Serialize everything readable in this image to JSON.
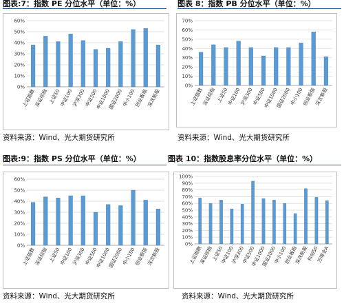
{
  "captions": [
    {
      "title": "图表:7：指数 PE 分位水平（单位：%）",
      "source": "资料来源：Wind、光大期货研究所"
    },
    {
      "title": "图表 8：指数 PB 分位水平（单位：%）",
      "source": "资料来源：Wind、光大期货研究所"
    },
    {
      "title": "图表:9：指数 PS 分位水平（单位：%）",
      "source": "资料来源：Wind、光大期货研究所"
    },
    {
      "title": "图表 10：指数股息率分位水平（单位：%）",
      "source": "资料来源：Wind、光大期货研究所"
    }
  ],
  "colors": {
    "bar": "#5b9bd5",
    "bar_edge": "#41719c",
    "grid": "#d9d9d9",
    "rule": "#2f5597"
  },
  "chart_data": [
    {
      "type": "bar",
      "title": "图表:7：指数 PE 分位水平（单位：%）",
      "ylim": [
        0,
        60
      ],
      "ytick_step": 10,
      "ytick_format": "percent",
      "grid": true,
      "categories": [
        "上证指数",
        "深证综指",
        "上证50",
        "中证100",
        "沪深300",
        "中证500",
        "中证1000",
        "国证2000",
        "中小100",
        "创业板指",
        "深次新股"
      ],
      "values": [
        38,
        46,
        41,
        48,
        42,
        34,
        35,
        41,
        52,
        53,
        38
      ]
    },
    {
      "type": "bar",
      "title": "图表 8：指数 PB 分位水平（单位：%）",
      "ylim": [
        0,
        70
      ],
      "ytick_step": 10,
      "ytick_format": "percent",
      "grid": true,
      "categories": [
        "上证指数",
        "深证综指",
        "上证50",
        "中证100",
        "沪深300",
        "中证500",
        "中证1000",
        "国证2000",
        "中小100",
        "创业板指",
        "深次新股"
      ],
      "values": [
        36,
        44,
        41,
        48,
        41,
        32,
        41,
        41,
        46,
        58,
        31
      ]
    },
    {
      "type": "bar",
      "title": "图表:9：指数 PS 分位水平（单位：%）",
      "ylim": [
        0,
        60
      ],
      "ytick_step": 10,
      "ytick_format": "percent",
      "grid": true,
      "categories": [
        "上证指数",
        "深证综指",
        "上证50",
        "中证100",
        "沪深300",
        "中证500",
        "中证1000",
        "国证2000",
        "中小100",
        "创业板指",
        "深次新股"
      ],
      "values": [
        39,
        44,
        43,
        45,
        45,
        30,
        37,
        36,
        50,
        41,
        33
      ]
    },
    {
      "type": "bar",
      "title": "图表 10：指数股息率分位水平（单位：%）",
      "ylim": [
        0,
        100
      ],
      "ytick_step": 10,
      "ytick_format": "percent",
      "grid": true,
      "categories": [
        "上证指数",
        "深证综指",
        "上证50",
        "中证100",
        "沪深300",
        "中证500",
        "中证1000",
        "国证2000",
        "中小100",
        "创业板指",
        "深次新股",
        "科创50",
        "万得全A"
      ],
      "values": [
        68,
        60,
        65,
        52,
        59,
        93,
        67,
        65,
        60,
        45,
        82,
        69,
        64
      ]
    }
  ]
}
